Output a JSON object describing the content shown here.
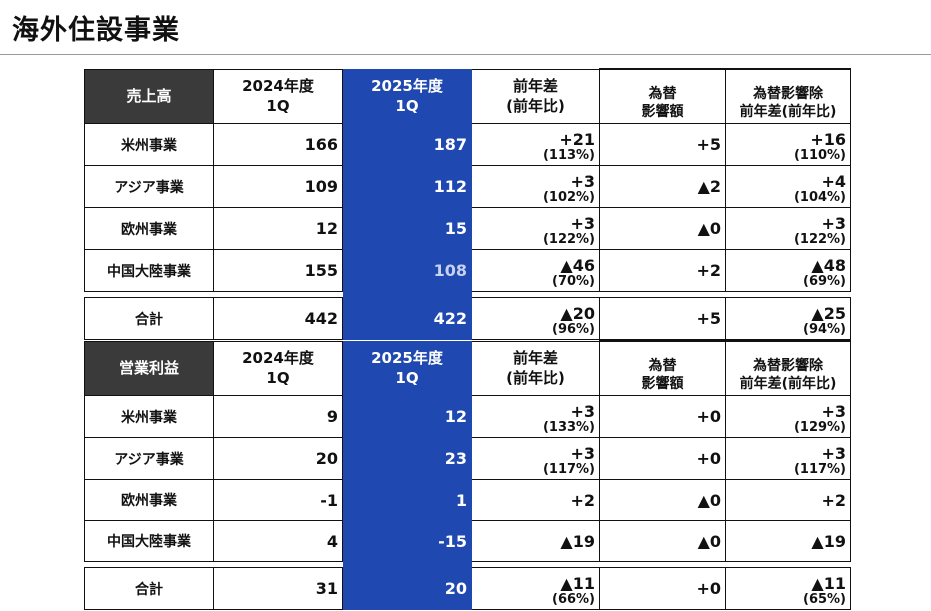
{
  "page_title": "海外住設事業",
  "columns": {
    "prev_year": [
      "2024年度",
      "1Q"
    ],
    "curr_year": [
      "2025年度",
      "1Q"
    ],
    "yoy": [
      "前年差",
      "(前年比)"
    ],
    "fx": [
      "為替",
      "影響額"
    ],
    "ex_fx": [
      "為替影響除",
      "前年差(前年比)"
    ]
  },
  "sales": {
    "label": "売上高",
    "rows": [
      {
        "name": "米州事業",
        "prev": "166",
        "curr": "187",
        "yoy": "+21",
        "yoy_pct": "(113%)",
        "fx": "+5",
        "exfx": "+16",
        "exfx_pct": "(110%)"
      },
      {
        "name": "アジア事業",
        "prev": "109",
        "curr": "112",
        "yoy": "+3",
        "yoy_pct": "(102%)",
        "fx": "▲2",
        "exfx": "+4",
        "exfx_pct": "(104%)"
      },
      {
        "name": "欧州事業",
        "prev": "12",
        "curr": "15",
        "yoy": "+3",
        "yoy_pct": "(122%)",
        "fx": "▲0",
        "exfx": "+3",
        "exfx_pct": "(122%)"
      },
      {
        "name": "中国大陸事業",
        "prev": "155",
        "curr": "108",
        "yoy": "▲46",
        "yoy_pct": "(70%)",
        "fx": "+2",
        "exfx": "▲48",
        "exfx_pct": "(69%)"
      }
    ],
    "total": {
      "name": "合計",
      "prev": "442",
      "curr": "422",
      "yoy": "▲20",
      "yoy_pct": "(96%)",
      "fx": "+5",
      "exfx": "▲25",
      "exfx_pct": "(94%)"
    }
  },
  "op_income": {
    "label": "営業利益",
    "rows": [
      {
        "name": "米州事業",
        "prev": "9",
        "curr": "12",
        "yoy": "+3",
        "yoy_pct": "(133%)",
        "fx": "+0",
        "exfx": "+3",
        "exfx_pct": "(129%)"
      },
      {
        "name": "アジア事業",
        "prev": "20",
        "curr": "23",
        "yoy": "+3",
        "yoy_pct": "(117%)",
        "fx": "+0",
        "exfx": "+3",
        "exfx_pct": "(117%)"
      },
      {
        "name": "欧州事業",
        "prev": "-1",
        "curr": "1",
        "yoy": "+2",
        "yoy_pct": "",
        "fx": "▲0",
        "exfx": "+2",
        "exfx_pct": ""
      },
      {
        "name": "中国大陸事業",
        "prev": "4",
        "curr": "-15",
        "yoy": "▲19",
        "yoy_pct": "",
        "fx": "▲0",
        "exfx": "▲19",
        "exfx_pct": ""
      }
    ],
    "total": {
      "name": "合計",
      "prev": "31",
      "curr": "20",
      "yoy": "▲11",
      "yoy_pct": "(66%)",
      "fx": "+0",
      "exfx": "▲11",
      "exfx_pct": "(65%)"
    }
  }
}
